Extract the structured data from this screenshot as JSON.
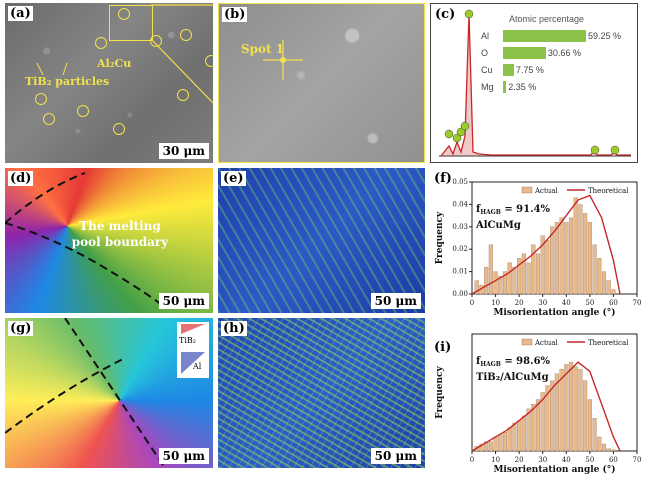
{
  "panels": {
    "a": {
      "label": "(a)",
      "scale": "30 μm",
      "annotations": {
        "phase1": "Al₂Cu",
        "phase2": "TiB₂ particles"
      }
    },
    "b": {
      "label": "(b)",
      "spot": "Spot 1"
    },
    "c": {
      "label": "(c)"
    },
    "d": {
      "label": "(d)",
      "scale": "50 μm",
      "annotation": "The melting pool boundary"
    },
    "e": {
      "label": "(e)",
      "scale": "50 μm"
    },
    "f": {
      "label": "(f)"
    },
    "g": {
      "label": "(g)",
      "scale": "50 μm",
      "legend_a": "TiB₂",
      "legend_b": "Al"
    },
    "h": {
      "label": "(h)",
      "scale": "50 μm"
    },
    "i": {
      "label": "(i)"
    }
  },
  "chart_data": [
    {
      "type": "bar",
      "title": "Atomic percentage",
      "categories": [
        "Al",
        "O",
        "Cu",
        "Mg"
      ],
      "values": [
        59.25,
        30.66,
        7.75,
        2.35
      ],
      "value_labels": [
        "59.25 %",
        "30.66 %",
        "7.75 %",
        "2.35 %"
      ],
      "color": "#8bc34a"
    },
    {
      "type": "bar",
      "panel": "f",
      "xlabel": "Misorientation angle (°)",
      "ylabel": "Frequency",
      "xticks": [
        "0",
        "10",
        "20",
        "30",
        "40",
        "50",
        "60",
        "70"
      ],
      "yticks": [
        "0.00",
        "0.01",
        "0.02",
        "0.03",
        "0.04",
        "0.05"
      ],
      "xlim": [
        0,
        70
      ],
      "ylim": [
        0,
        0.05
      ],
      "annotation_fraction": "f",
      "annotation_fraction_sub": "HAGB",
      "annotation_fraction_value": " = 91.4%",
      "annotation_material": "AlCuMg",
      "series": [
        {
          "name": "Actual",
          "color": "#e8b98a",
          "x": [
            2,
            4,
            6,
            8,
            10,
            12,
            14,
            16,
            18,
            20,
            22,
            24,
            26,
            28,
            30,
            32,
            34,
            36,
            38,
            40,
            42,
            44,
            46,
            48,
            50,
            52,
            54,
            56,
            58,
            60
          ],
          "values": [
            0.006,
            0.004,
            0.012,
            0.022,
            0.01,
            0.008,
            0.01,
            0.014,
            0.012,
            0.016,
            0.018,
            0.014,
            0.022,
            0.018,
            0.026,
            0.024,
            0.03,
            0.032,
            0.034,
            0.032,
            0.034,
            0.043,
            0.04,
            0.036,
            0.032,
            0.022,
            0.016,
            0.01,
            0.006,
            0.002
          ]
        },
        {
          "name": "Theoretical",
          "color": "#c62828",
          "x": [
            0,
            5,
            10,
            15,
            20,
            25,
            30,
            35,
            40,
            45,
            50,
            55,
            60,
            62.8
          ],
          "values": [
            0,
            0.003,
            0.006,
            0.009,
            0.013,
            0.017,
            0.022,
            0.028,
            0.035,
            0.042,
            0.044,
            0.034,
            0.015,
            0
          ]
        }
      ]
    },
    {
      "type": "bar",
      "panel": "i",
      "xlabel": "Misorientation angle (°)",
      "ylabel": "Frequency",
      "xticks": [
        "0",
        "10",
        "20",
        "30",
        "40",
        "50",
        "60",
        "70"
      ],
      "xlim": [
        0,
        70
      ],
      "ylim": [
        0,
        0.05
      ],
      "annotation_fraction": "f",
      "annotation_fraction_sub": "HAGB",
      "annotation_fraction_value": " = 98.6%",
      "annotation_material": "TiB₂/AlCuMg",
      "series": [
        {
          "name": "Actual",
          "color": "#e8b98a",
          "x": [
            2,
            4,
            6,
            8,
            10,
            12,
            14,
            16,
            18,
            20,
            22,
            24,
            26,
            28,
            30,
            32,
            34,
            36,
            38,
            40,
            42,
            44,
            46,
            48,
            50,
            52,
            54,
            56,
            58,
            60
          ],
          "values": [
            0.002,
            0.003,
            0.004,
            0.004,
            0.006,
            0.007,
            0.008,
            0.01,
            0.012,
            0.013,
            0.015,
            0.018,
            0.02,
            0.022,
            0.025,
            0.028,
            0.03,
            0.033,
            0.035,
            0.037,
            0.038,
            0.036,
            0.035,
            0.03,
            0.022,
            0.014,
            0.006,
            0.003,
            0.001,
            0.0005
          ]
        },
        {
          "name": "Theoretical",
          "color": "#c62828",
          "x": [
            0,
            5,
            10,
            15,
            20,
            25,
            30,
            35,
            40,
            45,
            50,
            55,
            60,
            62.8
          ],
          "values": [
            0,
            0.003,
            0.006,
            0.009,
            0.013,
            0.017,
            0.022,
            0.028,
            0.033,
            0.038,
            0.034,
            0.02,
            0.006,
            0
          ]
        }
      ]
    }
  ]
}
